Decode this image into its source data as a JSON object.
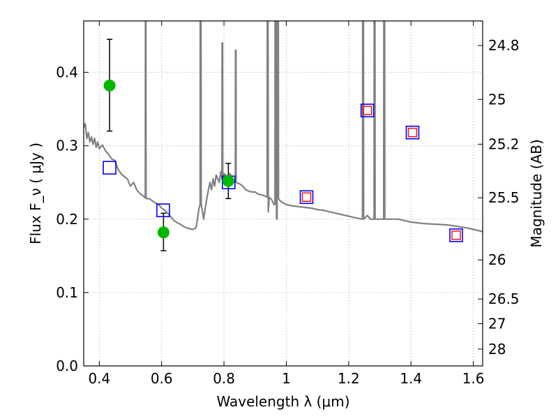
{
  "chart_data": {
    "type": "scatter",
    "xlabel": "Wavelength  λ (μm)",
    "ylabel": "Flux  F_ν  ( μJy )",
    "y2label": "Magnitude (AB)",
    "xlim": [
      0.35,
      1.63
    ],
    "ylim": [
      0.0,
      0.47
    ],
    "grid": true,
    "x_ticks": [
      {
        "value": 0.4,
        "label": "0.4"
      },
      {
        "value": 0.6,
        "label": "0.6"
      },
      {
        "value": 0.8,
        "label": "0.8"
      },
      {
        "value": 1.0,
        "label": "1"
      },
      {
        "value": 1.2,
        "label": "1.2"
      },
      {
        "value": 1.4,
        "label": "1.4"
      },
      {
        "value": 1.6,
        "label": "1.6"
      }
    ],
    "y_ticks": [
      {
        "value": 0.0,
        "label": "0.0"
      },
      {
        "value": 0.1,
        "label": "0.1"
      },
      {
        "value": 0.2,
        "label": "0.2"
      },
      {
        "value": 0.3,
        "label": "0.3"
      },
      {
        "value": 0.4,
        "label": "0.4"
      }
    ],
    "y2_ticks": [
      {
        "flux": 0.4365,
        "label": "24.8"
      },
      {
        "flux": 0.3631,
        "label": "25"
      },
      {
        "flux": 0.302,
        "label": "25.2"
      },
      {
        "flux": 0.2291,
        "label": "25.5"
      },
      {
        "flux": 0.1445,
        "label": "26"
      },
      {
        "flux": 0.0912,
        "label": "26.5"
      },
      {
        "flux": 0.0575,
        "label": "27"
      },
      {
        "flux": 0.0229,
        "label": "28"
      }
    ],
    "series": [
      {
        "kind": "line",
        "color": "#808080",
        "points": [
          [
            0.35,
            0.325
          ],
          [
            0.355,
            0.33
          ],
          [
            0.36,
            0.31
          ],
          [
            0.365,
            0.318
          ],
          [
            0.37,
            0.305
          ],
          [
            0.375,
            0.312
          ],
          [
            0.38,
            0.302
          ],
          [
            0.385,
            0.31
          ],
          [
            0.39,
            0.298
          ],
          [
            0.395,
            0.305
          ],
          [
            0.4,
            0.296
          ],
          [
            0.41,
            0.301
          ],
          [
            0.42,
            0.293
          ],
          [
            0.43,
            0.288
          ],
          [
            0.44,
            0.282
          ],
          [
            0.45,
            0.28
          ],
          [
            0.46,
            0.268
          ],
          [
            0.47,
            0.262
          ],
          [
            0.48,
            0.258
          ],
          [
            0.49,
            0.255
          ],
          [
            0.5,
            0.245
          ],
          [
            0.51,
            0.25
          ],
          [
            0.52,
            0.24
          ],
          [
            0.53,
            0.235
          ],
          [
            0.54,
            0.232
          ],
          [
            0.5475,
            0.229
          ],
          [
            0.548,
            0.47
          ],
          [
            0.5495,
            0.47
          ],
          [
            0.55,
            0.228
          ],
          [
            0.56,
            0.228
          ],
          [
            0.57,
            0.225
          ],
          [
            0.58,
            0.222
          ],
          [
            0.59,
            0.22
          ],
          [
            0.6,
            0.215
          ],
          [
            0.61,
            0.212
          ],
          [
            0.62,
            0.208
          ],
          [
            0.63,
            0.203
          ],
          [
            0.64,
            0.198
          ],
          [
            0.65,
            0.195
          ],
          [
            0.66,
            0.193
          ],
          [
            0.67,
            0.19
          ],
          [
            0.68,
            0.188
          ],
          [
            0.69,
            0.187
          ],
          [
            0.7,
            0.186
          ],
          [
            0.71,
            0.188
          ],
          [
            0.715,
            0.2
          ],
          [
            0.72,
            0.215
          ],
          [
            0.7235,
            0.22
          ],
          [
            0.724,
            0.47
          ],
          [
            0.7265,
            0.47
          ],
          [
            0.727,
            0.22
          ],
          [
            0.735,
            0.2
          ],
          [
            0.74,
            0.215
          ],
          [
            0.745,
            0.228
          ],
          [
            0.75,
            0.24
          ],
          [
            0.755,
            0.25
          ],
          [
            0.76,
            0.24
          ],
          [
            0.765,
            0.255
          ],
          [
            0.77,
            0.245
          ],
          [
            0.775,
            0.26
          ],
          [
            0.78,
            0.255
          ],
          [
            0.785,
            0.25
          ],
          [
            0.79,
            0.265
          ],
          [
            0.7935,
            0.255
          ],
          [
            0.794,
            0.44
          ],
          [
            0.7955,
            0.44
          ],
          [
            0.796,
            0.255
          ],
          [
            0.8,
            0.262
          ],
          [
            0.81,
            0.258
          ],
          [
            0.82,
            0.262
          ],
          [
            0.83,
            0.25
          ],
          [
            0.8365,
            0.252
          ],
          [
            0.837,
            0.43
          ],
          [
            0.8385,
            0.43
          ],
          [
            0.839,
            0.25
          ],
          [
            0.85,
            0.248
          ],
          [
            0.86,
            0.245
          ],
          [
            0.87,
            0.24
          ],
          [
            0.88,
            0.238
          ],
          [
            0.89,
            0.237
          ],
          [
            0.9,
            0.237
          ],
          [
            0.91,
            0.234
          ],
          [
            0.92,
            0.233
          ],
          [
            0.93,
            0.232
          ],
          [
            0.9385,
            0.23
          ],
          [
            0.939,
            0.47
          ],
          [
            0.9415,
            0.47
          ],
          [
            0.942,
            0.21
          ],
          [
            0.945,
            0.23
          ],
          [
            0.95,
            0.228
          ],
          [
            0.955,
            0.225
          ],
          [
            0.96,
            0.22
          ],
          [
            0.9635,
            0.22
          ],
          [
            0.964,
            0.47
          ],
          [
            0.968,
            0.47
          ],
          [
            0.9685,
            0.2
          ],
          [
            0.9705,
            0.2
          ],
          [
            0.971,
            0.47
          ],
          [
            0.9745,
            0.47
          ],
          [
            0.975,
            0.228
          ],
          [
            0.98,
            0.225
          ],
          [
            0.99,
            0.222
          ],
          [
            1.0,
            0.22
          ],
          [
            1.02,
            0.218
          ],
          [
            1.04,
            0.217
          ],
          [
            1.06,
            0.216
          ],
          [
            1.08,
            0.215
          ],
          [
            1.1,
            0.213
          ],
          [
            1.12,
            0.212
          ],
          [
            1.14,
            0.21
          ],
          [
            1.16,
            0.208
          ],
          [
            1.18,
            0.206
          ],
          [
            1.2,
            0.204
          ],
          [
            1.22,
            0.202
          ],
          [
            1.2445,
            0.2
          ],
          [
            1.245,
            0.47
          ],
          [
            1.2475,
            0.47
          ],
          [
            1.248,
            0.2
          ],
          [
            1.26,
            0.205
          ],
          [
            1.27,
            0.2
          ],
          [
            1.2815,
            0.2
          ],
          [
            1.282,
            0.47
          ],
          [
            1.2845,
            0.47
          ],
          [
            1.285,
            0.2
          ],
          [
            1.29,
            0.2
          ],
          [
            1.3,
            0.2
          ],
          [
            1.3125,
            0.2
          ],
          [
            1.313,
            0.47
          ],
          [
            1.3155,
            0.47
          ],
          [
            1.316,
            0.2
          ],
          [
            1.33,
            0.2
          ],
          [
            1.36,
            0.2
          ],
          [
            1.4,
            0.196
          ],
          [
            1.44,
            0.194
          ],
          [
            1.48,
            0.193
          ],
          [
            1.52,
            0.192
          ],
          [
            1.55,
            0.19
          ],
          [
            1.58,
            0.188
          ],
          [
            1.6,
            0.186
          ],
          [
            1.63,
            0.183
          ]
        ]
      },
      {
        "kind": "squares",
        "color": "#0000ff",
        "points": [
          [
            0.433,
            0.27
          ],
          [
            0.605,
            0.212
          ],
          [
            0.815,
            0.25
          ],
          [
            1.065,
            0.23
          ],
          [
            1.26,
            0.348
          ],
          [
            1.405,
            0.318
          ],
          [
            1.545,
            0.178
          ]
        ]
      },
      {
        "kind": "inner-squares",
        "color": "#ff0000",
        "points": [
          [
            1.065,
            0.23
          ],
          [
            1.26,
            0.348
          ],
          [
            1.405,
            0.318
          ],
          [
            1.545,
            0.178
          ]
        ]
      },
      {
        "kind": "points-errorbars",
        "color": "#00b800",
        "points": [
          {
            "x": 0.433,
            "y": 0.382,
            "ylow": 0.32,
            "yhigh": 0.445
          },
          {
            "x": 0.606,
            "y": 0.182,
            "ylow": 0.157,
            "yhigh": 0.208
          },
          {
            "x": 0.814,
            "y": 0.252,
            "ylow": 0.228,
            "yhigh": 0.276
          }
        ]
      }
    ]
  }
}
